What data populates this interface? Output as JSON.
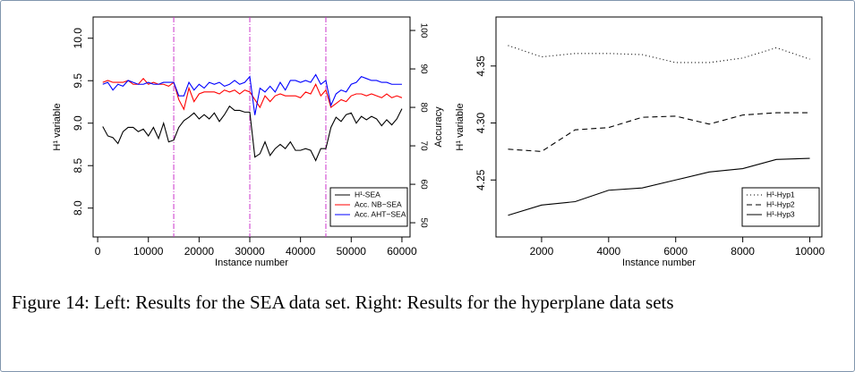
{
  "chart_data": [
    {
      "type": "line",
      "x": [
        1000,
        2000,
        3000,
        4000,
        5000,
        6000,
        7000,
        8000,
        9000,
        10000,
        11000,
        12000,
        13000,
        14000,
        15000,
        16000,
        17000,
        18000,
        19000,
        20000,
        21000,
        22000,
        23000,
        24000,
        25000,
        26000,
        27000,
        28000,
        29000,
        30000,
        31000,
        32000,
        33000,
        34000,
        35000,
        36000,
        37000,
        38000,
        39000,
        40000,
        41000,
        42000,
        43000,
        44000,
        45000,
        46000,
        47000,
        48000,
        49000,
        50000,
        51000,
        52000,
        53000,
        54000,
        55000,
        56000,
        57000,
        58000,
        59000,
        60000
      ],
      "series": [
        {
          "name": "H¹-SEA",
          "color": "#000000",
          "values": [
            8.96,
            8.85,
            8.83,
            8.76,
            8.9,
            8.95,
            8.95,
            8.9,
            8.93,
            8.85,
            8.95,
            8.82,
            9.0,
            8.78,
            8.8,
            8.95,
            9.03,
            9.07,
            9.12,
            9.05,
            9.1,
            9.05,
            9.12,
            9.02,
            9.1,
            9.2,
            9.15,
            9.15,
            9.13,
            9.13,
            8.6,
            8.64,
            8.78,
            8.62,
            8.7,
            8.75,
            8.7,
            8.78,
            8.68,
            8.68,
            8.7,
            8.68,
            8.56,
            8.7,
            8.7,
            8.95,
            9.07,
            9.02,
            9.1,
            9.12,
            9.0,
            9.08,
            9.04,
            9.08,
            9.05,
            8.97,
            9.04,
            8.98,
            9.05,
            9.17
          ]
        },
        {
          "name": "Acc. NB−SEA",
          "color": "#ff0000",
          "axis": "y2",
          "values": [
            86.5,
            87,
            86.5,
            86.5,
            86.5,
            87,
            86,
            86,
            87.5,
            86,
            86.5,
            86,
            86,
            85.5,
            86.5,
            82,
            79.5,
            85,
            81.5,
            83.5,
            84,
            84,
            84,
            83.5,
            84.5,
            84,
            84.5,
            83.5,
            84.5,
            84,
            82,
            80,
            83,
            81.5,
            83,
            83.5,
            83,
            83,
            83,
            82.5,
            84,
            83.5,
            86,
            83,
            84.5,
            80,
            81,
            82,
            81.5,
            83,
            83.5,
            83.5,
            83,
            83.5,
            83,
            82.5,
            83.5,
            82.5,
            83,
            82.5
          ]
        },
        {
          "name": "Acc. AHT−SEA",
          "color": "#0000ff",
          "axis": "y2",
          "values": [
            86,
            86.5,
            84.5,
            86,
            85.5,
            87,
            86.5,
            86,
            86,
            86.5,
            86,
            86,
            86.5,
            86.5,
            86.5,
            83,
            83,
            86.5,
            84.5,
            86,
            85,
            86.5,
            86,
            86.5,
            85.5,
            86,
            87,
            86,
            86.5,
            88,
            78,
            85,
            84,
            85.5,
            84,
            86.5,
            84.5,
            87,
            87,
            86.5,
            87,
            86.5,
            88.5,
            86,
            87,
            80.5,
            83.5,
            84.5,
            84,
            86,
            86.5,
            88,
            87.5,
            87,
            87,
            86.5,
            86.5,
            86,
            86,
            86
          ]
        }
      ],
      "xlim": [
        -900,
        61600
      ],
      "xticks": [
        0,
        10000,
        20000,
        30000,
        40000,
        50000,
        60000
      ],
      "ylim": [
        7.66,
        10.25
      ],
      "yticks": [
        {
          "value": 8,
          "label": "8.0"
        },
        8.5,
        {
          "value": 9,
          "label": "9.0"
        },
        9.5,
        {
          "value": 10,
          "label": "10.0"
        }
      ],
      "y2lim": [
        46.3,
        103.5
      ],
      "y2ticks": [
        50,
        60,
        70,
        80,
        90,
        100
      ],
      "xlabel": "Instance number",
      "ylabel": "H¹ variable",
      "y2label": "Accuracy",
      "vlines": [
        15000,
        30000,
        45000
      ],
      "vline_color": "#cc33cc",
      "legend": "bottom-right"
    },
    {
      "type": "line",
      "x": [
        1000,
        2000,
        3000,
        4000,
        5000,
        6000,
        7000,
        8000,
        9000,
        10000
      ],
      "series": [
        {
          "name": "H¹-Hyp1",
          "color": "#000000",
          "dash": "dotted",
          "values": [
            4.368,
            4.358,
            4.361,
            4.361,
            4.36,
            4.353,
            4.353,
            4.357,
            4.366,
            4.356
          ]
        },
        {
          "name": "H¹-Hyp2",
          "color": "#000000",
          "dash": "dashed",
          "values": [
            4.277,
            4.275,
            4.294,
            4.296,
            4.305,
            4.306,
            4.299,
            4.307,
            4.309,
            4.309
          ]
        },
        {
          "name": "H¹-Hyp3",
          "color": "#000000",
          "dash": "solid",
          "values": [
            4.219,
            4.228,
            4.231,
            4.241,
            4.243,
            4.25,
            4.257,
            4.26,
            4.268,
            4.269
          ]
        }
      ],
      "xlim": [
        640,
        10360
      ],
      "xticks": [
        2000,
        4000,
        6000,
        8000,
        10000
      ],
      "ylim": [
        4.2,
        4.393
      ],
      "yticks": [
        4.25,
        {
          "value": 4.3,
          "label": "4.30"
        },
        4.35
      ],
      "xlabel": "Instance number",
      "ylabel": "H¹ variable",
      "legend": "bottom-right"
    }
  ],
  "caption": "Figure 14: Left: Results for the SEA data set. Right: Results for the hyperplane data sets"
}
